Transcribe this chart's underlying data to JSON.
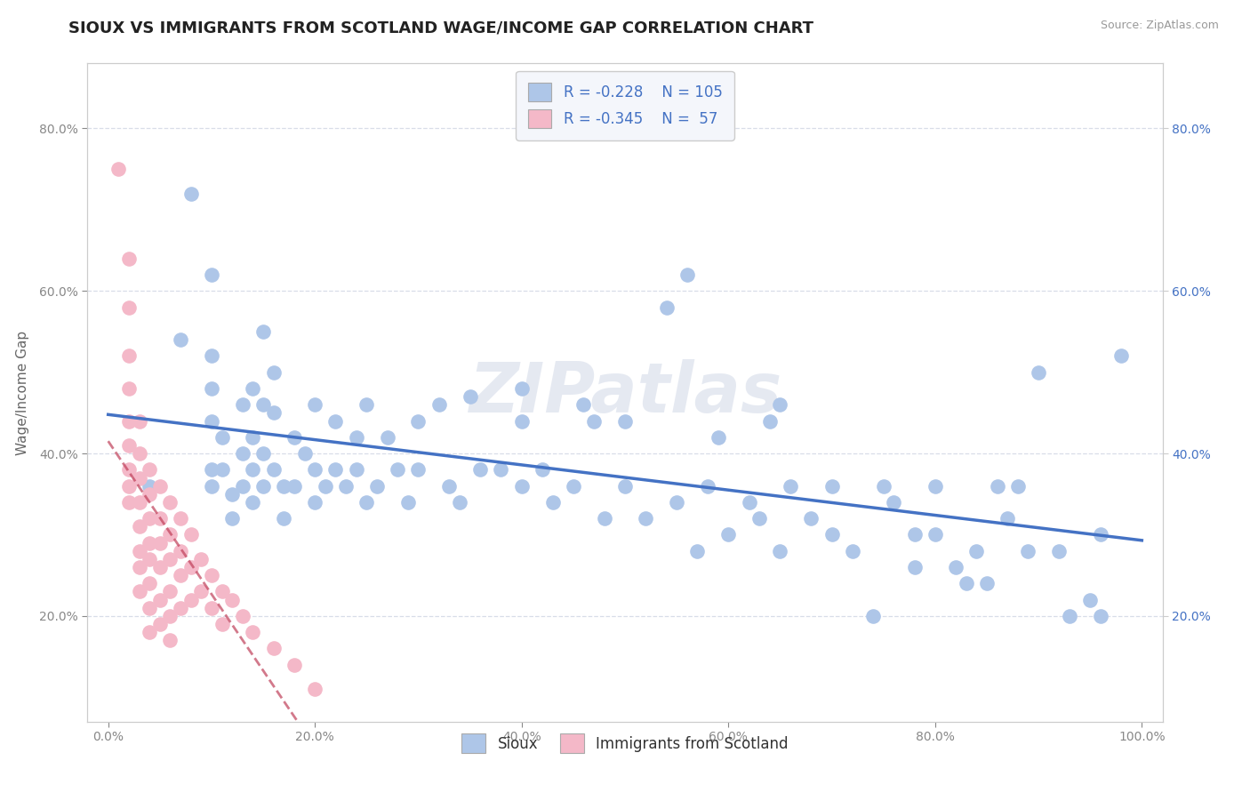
{
  "title": "SIOUX VS IMMIGRANTS FROM SCOTLAND WAGE/INCOME GAP CORRELATION CHART",
  "source": "Source: ZipAtlas.com",
  "ylabel": "Wage/Income Gap",
  "watermark": "ZIPatlas",
  "xlim": [
    -0.02,
    1.02
  ],
  "ylim": [
    0.07,
    0.88
  ],
  "xticks": [
    0.0,
    0.2,
    0.4,
    0.6,
    0.8,
    1.0
  ],
  "yticks": [
    0.2,
    0.4,
    0.6,
    0.8
  ],
  "xtick_labels": [
    "0.0%",
    "20.0%",
    "40.0%",
    "60.0%",
    "80.0%",
    "100.0%"
  ],
  "ytick_labels": [
    "20.0%",
    "40.0%",
    "60.0%",
    "80.0%"
  ],
  "right_ytick_labels": [
    "20.0%",
    "40.0%",
    "60.0%",
    "80.0%"
  ],
  "right_yticks": [
    0.2,
    0.4,
    0.6,
    0.8
  ],
  "sioux_R": -0.228,
  "sioux_N": 105,
  "scotland_R": -0.345,
  "scotland_N": 57,
  "sioux_color": "#aec6e8",
  "sioux_line_color": "#4472c4",
  "scotland_color": "#f4b8c8",
  "scotland_line_color": "#c0405a",
  "sioux_scatter": [
    [
      0.04,
      0.36
    ],
    [
      0.07,
      0.54
    ],
    [
      0.08,
      0.72
    ],
    [
      0.1,
      0.62
    ],
    [
      0.1,
      0.52
    ],
    [
      0.1,
      0.48
    ],
    [
      0.1,
      0.44
    ],
    [
      0.1,
      0.38
    ],
    [
      0.1,
      0.36
    ],
    [
      0.11,
      0.42
    ],
    [
      0.11,
      0.38
    ],
    [
      0.12,
      0.35
    ],
    [
      0.12,
      0.32
    ],
    [
      0.13,
      0.46
    ],
    [
      0.13,
      0.4
    ],
    [
      0.13,
      0.36
    ],
    [
      0.14,
      0.48
    ],
    [
      0.14,
      0.42
    ],
    [
      0.14,
      0.38
    ],
    [
      0.14,
      0.34
    ],
    [
      0.15,
      0.55
    ],
    [
      0.15,
      0.46
    ],
    [
      0.15,
      0.4
    ],
    [
      0.15,
      0.36
    ],
    [
      0.16,
      0.5
    ],
    [
      0.16,
      0.45
    ],
    [
      0.16,
      0.38
    ],
    [
      0.17,
      0.36
    ],
    [
      0.17,
      0.32
    ],
    [
      0.18,
      0.42
    ],
    [
      0.18,
      0.36
    ],
    [
      0.19,
      0.4
    ],
    [
      0.2,
      0.46
    ],
    [
      0.2,
      0.38
    ],
    [
      0.2,
      0.34
    ],
    [
      0.21,
      0.36
    ],
    [
      0.22,
      0.44
    ],
    [
      0.22,
      0.38
    ],
    [
      0.23,
      0.36
    ],
    [
      0.24,
      0.42
    ],
    [
      0.24,
      0.38
    ],
    [
      0.25,
      0.46
    ],
    [
      0.25,
      0.34
    ],
    [
      0.26,
      0.36
    ],
    [
      0.27,
      0.42
    ],
    [
      0.28,
      0.38
    ],
    [
      0.29,
      0.34
    ],
    [
      0.3,
      0.44
    ],
    [
      0.3,
      0.38
    ],
    [
      0.32,
      0.46
    ],
    [
      0.33,
      0.36
    ],
    [
      0.34,
      0.34
    ],
    [
      0.35,
      0.47
    ],
    [
      0.36,
      0.38
    ],
    [
      0.38,
      0.38
    ],
    [
      0.4,
      0.48
    ],
    [
      0.4,
      0.44
    ],
    [
      0.4,
      0.36
    ],
    [
      0.42,
      0.38
    ],
    [
      0.43,
      0.34
    ],
    [
      0.45,
      0.36
    ],
    [
      0.46,
      0.46
    ],
    [
      0.47,
      0.44
    ],
    [
      0.48,
      0.32
    ],
    [
      0.5,
      0.44
    ],
    [
      0.5,
      0.36
    ],
    [
      0.52,
      0.32
    ],
    [
      0.54,
      0.58
    ],
    [
      0.55,
      0.34
    ],
    [
      0.56,
      0.62
    ],
    [
      0.57,
      0.28
    ],
    [
      0.58,
      0.36
    ],
    [
      0.59,
      0.42
    ],
    [
      0.6,
      0.3
    ],
    [
      0.62,
      0.34
    ],
    [
      0.63,
      0.32
    ],
    [
      0.64,
      0.44
    ],
    [
      0.65,
      0.46
    ],
    [
      0.65,
      0.28
    ],
    [
      0.66,
      0.36
    ],
    [
      0.68,
      0.32
    ],
    [
      0.7,
      0.36
    ],
    [
      0.7,
      0.3
    ],
    [
      0.72,
      0.28
    ],
    [
      0.74,
      0.2
    ],
    [
      0.75,
      0.36
    ],
    [
      0.76,
      0.34
    ],
    [
      0.78,
      0.3
    ],
    [
      0.78,
      0.26
    ],
    [
      0.8,
      0.36
    ],
    [
      0.8,
      0.3
    ],
    [
      0.82,
      0.26
    ],
    [
      0.83,
      0.24
    ],
    [
      0.84,
      0.28
    ],
    [
      0.85,
      0.24
    ],
    [
      0.86,
      0.36
    ],
    [
      0.87,
      0.32
    ],
    [
      0.88,
      0.36
    ],
    [
      0.89,
      0.28
    ],
    [
      0.9,
      0.5
    ],
    [
      0.92,
      0.28
    ],
    [
      0.93,
      0.2
    ],
    [
      0.95,
      0.22
    ],
    [
      0.96,
      0.3
    ],
    [
      0.96,
      0.2
    ],
    [
      0.98,
      0.52
    ]
  ],
  "scotland_scatter": [
    [
      0.01,
      0.75
    ],
    [
      0.02,
      0.64
    ],
    [
      0.02,
      0.58
    ],
    [
      0.02,
      0.52
    ],
    [
      0.02,
      0.48
    ],
    [
      0.02,
      0.44
    ],
    [
      0.02,
      0.41
    ],
    [
      0.02,
      0.38
    ],
    [
      0.02,
      0.36
    ],
    [
      0.02,
      0.34
    ],
    [
      0.03,
      0.44
    ],
    [
      0.03,
      0.4
    ],
    [
      0.03,
      0.37
    ],
    [
      0.03,
      0.34
    ],
    [
      0.03,
      0.31
    ],
    [
      0.03,
      0.28
    ],
    [
      0.03,
      0.26
    ],
    [
      0.03,
      0.23
    ],
    [
      0.04,
      0.38
    ],
    [
      0.04,
      0.35
    ],
    [
      0.04,
      0.32
    ],
    [
      0.04,
      0.29
    ],
    [
      0.04,
      0.27
    ],
    [
      0.04,
      0.24
    ],
    [
      0.04,
      0.21
    ],
    [
      0.04,
      0.18
    ],
    [
      0.05,
      0.36
    ],
    [
      0.05,
      0.32
    ],
    [
      0.05,
      0.29
    ],
    [
      0.05,
      0.26
    ],
    [
      0.05,
      0.22
    ],
    [
      0.05,
      0.19
    ],
    [
      0.06,
      0.34
    ],
    [
      0.06,
      0.3
    ],
    [
      0.06,
      0.27
    ],
    [
      0.06,
      0.23
    ],
    [
      0.06,
      0.2
    ],
    [
      0.06,
      0.17
    ],
    [
      0.07,
      0.32
    ],
    [
      0.07,
      0.28
    ],
    [
      0.07,
      0.25
    ],
    [
      0.07,
      0.21
    ],
    [
      0.08,
      0.3
    ],
    [
      0.08,
      0.26
    ],
    [
      0.08,
      0.22
    ],
    [
      0.09,
      0.27
    ],
    [
      0.09,
      0.23
    ],
    [
      0.1,
      0.25
    ],
    [
      0.1,
      0.21
    ],
    [
      0.11,
      0.23
    ],
    [
      0.11,
      0.19
    ],
    [
      0.12,
      0.22
    ],
    [
      0.13,
      0.2
    ],
    [
      0.14,
      0.18
    ],
    [
      0.16,
      0.16
    ],
    [
      0.18,
      0.14
    ],
    [
      0.2,
      0.11
    ]
  ],
  "background_color": "#ffffff",
  "grid_color": "#d8dde8",
  "title_fontsize": 13,
  "label_fontsize": 11,
  "tick_fontsize": 10,
  "legend_fontsize": 12,
  "scatter_size": 120,
  "scatter_linewidth": 1.0
}
